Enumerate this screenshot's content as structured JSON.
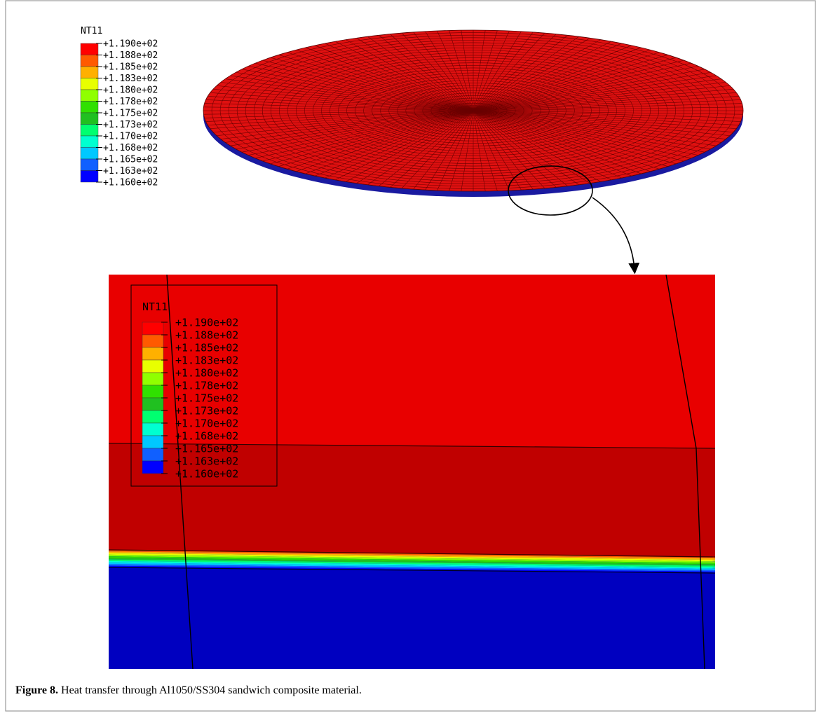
{
  "overview_legend": {
    "title": "NT11",
    "labels": [
      "+1.190e+02",
      "+1.188e+02",
      "+1.185e+02",
      "+1.183e+02",
      "+1.180e+02",
      "+1.178e+02",
      "+1.175e+02",
      "+1.173e+02",
      "+1.170e+02",
      "+1.168e+02",
      "+1.165e+02",
      "+1.163e+02",
      "+1.160e+02"
    ]
  },
  "zoom_legend": {
    "title": "NT11",
    "labels": [
      "+1.190e+02",
      "+1.188e+02",
      "+1.185e+02",
      "+1.183e+02",
      "+1.180e+02",
      "+1.178e+02",
      "+1.175e+02",
      "+1.173e+02",
      "+1.170e+02",
      "+1.168e+02",
      "+1.165e+02",
      "+1.163e+02",
      "+1.160e+02"
    ]
  },
  "caption": {
    "label": "Figure 8.",
    "text": "Heat transfer through Al1050/SS304 sandwich composite material."
  }
}
